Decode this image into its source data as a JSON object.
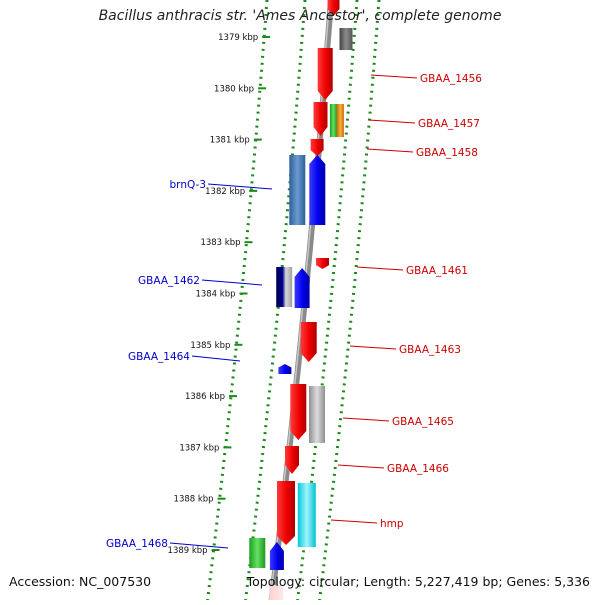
{
  "title": "Bacillus anthracis str. 'Ames Ancestor', complete genome",
  "footer": {
    "accession": "Accession: NC_007530",
    "topology": "Topology: circular; Length: 5,227,419 bp; Genes: 5,336"
  },
  "ticks": [
    "1379 kbp",
    "1380 kbp",
    "1381 kbp",
    "1382 kbp",
    "1383 kbp",
    "1384 kbp",
    "1385 kbp",
    "1386 kbp",
    "1387 kbp",
    "1388 kbp",
    "1389 kbp"
  ],
  "reverse_genes": [
    "GBAA_1456",
    "GBAA_1457",
    "GBAA_1458",
    "GBAA_1461",
    "GBAA_1463",
    "GBAA_1465",
    "GBAA_1466",
    "hmp"
  ],
  "forward_genes": [
    "brnQ-3",
    "GBAA_1462",
    "GBAA_1464",
    "GBAA_1468"
  ],
  "colors": {
    "forward_label": "#0000cc",
    "reverse_label": "#cc0000",
    "backbone": "#8a8a8a",
    "track_dots": "#1a8a1a",
    "reverse_feature": "#ee0000",
    "forward_feature": "#0000ee"
  }
}
